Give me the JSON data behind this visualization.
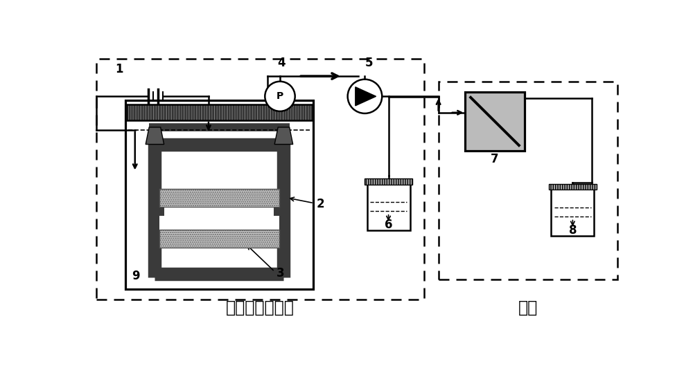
{
  "title_left": "电催化膜反应器",
  "title_right": "纳滤",
  "bg_color": "#ffffff",
  "label_1": "1",
  "label_2": "2",
  "label_3": "3",
  "label_4": "4",
  "label_5": "5",
  "label_6": "6",
  "label_7": "7",
  "label_8": "8",
  "label_9": "9",
  "gray_color": "#bbbbbb",
  "dark_color": "#3a3a3a",
  "lw": 1.8
}
